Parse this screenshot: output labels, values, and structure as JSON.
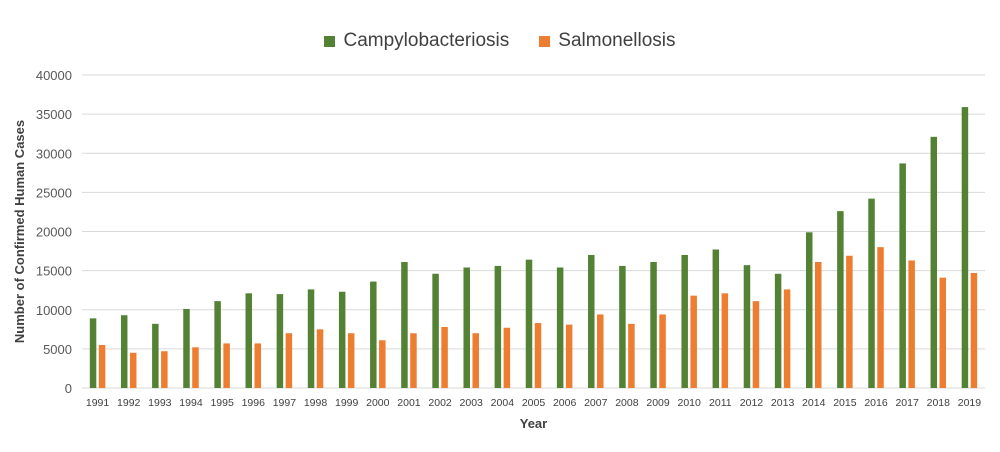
{
  "chart_data": {
    "type": "bar",
    "xlabel": "Year",
    "ylabel": "Number of Confirmed Human Cases",
    "ylim": [
      0,
      40000
    ],
    "yticks": [
      "0",
      "5000",
      "10000",
      "15000",
      "20000",
      "25000",
      "30000",
      "35000",
      "40000"
    ],
    "grid": true,
    "legend_position": "top-center",
    "categories": [
      "1991",
      "1992",
      "1993",
      "1994",
      "1995",
      "1996",
      "1997",
      "1998",
      "1999",
      "2000",
      "2001",
      "2002",
      "2003",
      "2004",
      "2005",
      "2006",
      "2007",
      "2008",
      "2009",
      "2010",
      "2011",
      "2012",
      "2013",
      "2014",
      "2015",
      "2016",
      "2017",
      "2018",
      "2019"
    ],
    "series": [
      {
        "name": "Campylobacteriosis",
        "color": "#548235",
        "values": [
          8900,
          9300,
          8200,
          10100,
          11100,
          12100,
          12000,
          12600,
          12300,
          13600,
          16100,
          14600,
          15400,
          15600,
          16400,
          15400,
          17000,
          15600,
          16100,
          17000,
          17700,
          15700,
          14600,
          19900,
          22600,
          24200,
          28700,
          32100,
          35900
        ]
      },
      {
        "name": "Salmonellosis",
        "color": "#ED7D31",
        "values": [
          5500,
          4500,
          4700,
          5200,
          5700,
          5700,
          7000,
          7500,
          7000,
          6100,
          7000,
          7800,
          7000,
          7700,
          8300,
          8100,
          9400,
          8200,
          9400,
          11800,
          12100,
          11100,
          12600,
          16100,
          16900,
          18000,
          16300,
          14100,
          14700
        ]
      }
    ]
  }
}
